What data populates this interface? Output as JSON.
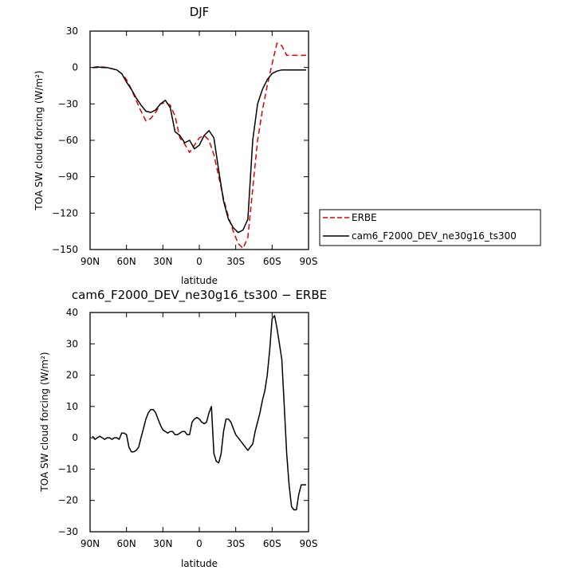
{
  "chart_data": [
    {
      "type": "line",
      "title": "DJF",
      "xlabel": "latitude",
      "ylabel": "TOA SW cloud forcing (W/m²)",
      "xlim": [
        90,
        -90
      ],
      "ylim": [
        -150,
        30
      ],
      "xticks": [
        90,
        60,
        30,
        0,
        -30,
        -60,
        -90
      ],
      "xtick_labels": [
        "90N",
        "60N",
        "30N",
        "0",
        "30S",
        "60S",
        "90S"
      ],
      "yticks": [
        30,
        0,
        -30,
        -60,
        -90,
        -120,
        -150
      ],
      "ytick_labels": [
        "30",
        "0",
        "−30",
        "−60",
        "−90",
        "−120",
        "−150"
      ],
      "legend": "right",
      "series": [
        {
          "name": "ERBE",
          "color": "#e00000",
          "dash": "dashed",
          "x": [
            88,
            84,
            80,
            76,
            72,
            68,
            64,
            60,
            56,
            52,
            48,
            44,
            40,
            36,
            32,
            28,
            24,
            20,
            16,
            12,
            8,
            4,
            0,
            -4,
            -8,
            -12,
            -16,
            -20,
            -24,
            -28,
            -32,
            -36,
            -40,
            -44,
            -48,
            -52,
            -56,
            -60,
            -64,
            -68,
            -72,
            -76,
            -80,
            -84,
            -88
          ],
          "y": [
            0,
            0,
            0.5,
            0,
            -1,
            -2,
            -5,
            -10,
            -18,
            -27,
            -36,
            -44,
            -42,
            -37,
            -30,
            -29,
            -31,
            -40,
            -58,
            -63,
            -70,
            -64,
            -58,
            -56,
            -60,
            -72,
            -90,
            -108,
            -123,
            -135,
            -145,
            -149,
            -140,
            -100,
            -60,
            -35,
            -15,
            3,
            20,
            18,
            10,
            10,
            10,
            10,
            10
          ]
        },
        {
          "name": "cam6_F2000_DEV_ne30g16_ts300",
          "color": "#000000",
          "dash": "solid",
          "x": [
            88,
            84,
            80,
            76,
            72,
            68,
            64,
            60,
            56,
            52,
            48,
            44,
            40,
            36,
            32,
            28,
            24,
            20,
            16,
            12,
            8,
            4,
            0,
            -4,
            -8,
            -12,
            -16,
            -20,
            -24,
            -28,
            -32,
            -36,
            -40,
            -44,
            -48,
            -52,
            -56,
            -60,
            -64,
            -68,
            -72,
            -76,
            -80,
            -84,
            -88
          ],
          "y": [
            0,
            0.5,
            0,
            0,
            -1,
            -2,
            -5,
            -12,
            -18,
            -25,
            -31,
            -36,
            -37,
            -35,
            -30,
            -27,
            -33,
            -53,
            -56,
            -62,
            -60,
            -67,
            -64,
            -56,
            -52,
            -58,
            -85,
            -110,
            -125,
            -132,
            -136,
            -134,
            -125,
            -60,
            -30,
            -18,
            -10,
            -5,
            -3,
            -2,
            -2,
            -2,
            -2,
            -2,
            -2
          ]
        }
      ]
    },
    {
      "type": "line",
      "title": "cam6_F2000_DEV_ne30g16_ts300 − ERBE",
      "xlabel": "latitude",
      "ylabel": "TOA SW cloud forcing (W/m²)",
      "xlim": [
        90,
        -90
      ],
      "ylim": [
        -30,
        40
      ],
      "xticks": [
        90,
        60,
        30,
        0,
        -30,
        -60,
        -90
      ],
      "xtick_labels": [
        "90N",
        "60N",
        "30N",
        "0",
        "30S",
        "60S",
        "90S"
      ],
      "yticks": [
        40,
        30,
        20,
        10,
        0,
        -10,
        -20,
        -30
      ],
      "ytick_labels": [
        "40",
        "30",
        "20",
        "10",
        "0",
        "−10",
        "−20",
        "−30"
      ],
      "series": [
        {
          "color": "#000000",
          "x": [
            88,
            86,
            84,
            82,
            80,
            78,
            76,
            74,
            72,
            70,
            68,
            66,
            64,
            62,
            60,
            58,
            56,
            54,
            52,
            50,
            48,
            46,
            44,
            42,
            40,
            38,
            36,
            34,
            32,
            30,
            28,
            26,
            24,
            22,
            20,
            18,
            16,
            14,
            12,
            10,
            8,
            6,
            4,
            2,
            0,
            -2,
            -4,
            -6,
            -8,
            -10,
            -12,
            -14,
            -16,
            -18,
            -20,
            -22,
            -24,
            -26,
            -28,
            -30,
            -32,
            -34,
            -36,
            -38,
            -40,
            -42,
            -44,
            -46,
            -48,
            -50,
            -52,
            -54,
            -56,
            -58,
            -60,
            -62,
            -64,
            -66,
            -68,
            -70,
            -72,
            -74,
            -76,
            -78,
            -80,
            -82,
            -84,
            -86,
            -88
          ],
          "y": [
            0.5,
            -0.5,
            0,
            0.5,
            0,
            -0.5,
            0,
            0,
            -0.5,
            0,
            0,
            -0.5,
            1.5,
            1.5,
            1,
            -3,
            -4.5,
            -4.5,
            -4,
            -3,
            0,
            3,
            6,
            8,
            9,
            9,
            8,
            6,
            4,
            2.5,
            2,
            1.5,
            2,
            2,
            1,
            1,
            1.5,
            2,
            2,
            1,
            1,
            5,
            6,
            6.5,
            6,
            5,
            4.5,
            5,
            8,
            10,
            -5,
            -7.5,
            -8,
            -5,
            2,
            6,
            6,
            5,
            3,
            1,
            0,
            -1,
            -2,
            -3,
            -4,
            -3,
            -2,
            2,
            5,
            8,
            12,
            15,
            20,
            28,
            38,
            39,
            35,
            30,
            25,
            10,
            -5,
            -15,
            -22,
            -23,
            -23,
            -18,
            -15,
            -15,
            -15
          ]
        }
      ]
    }
  ]
}
